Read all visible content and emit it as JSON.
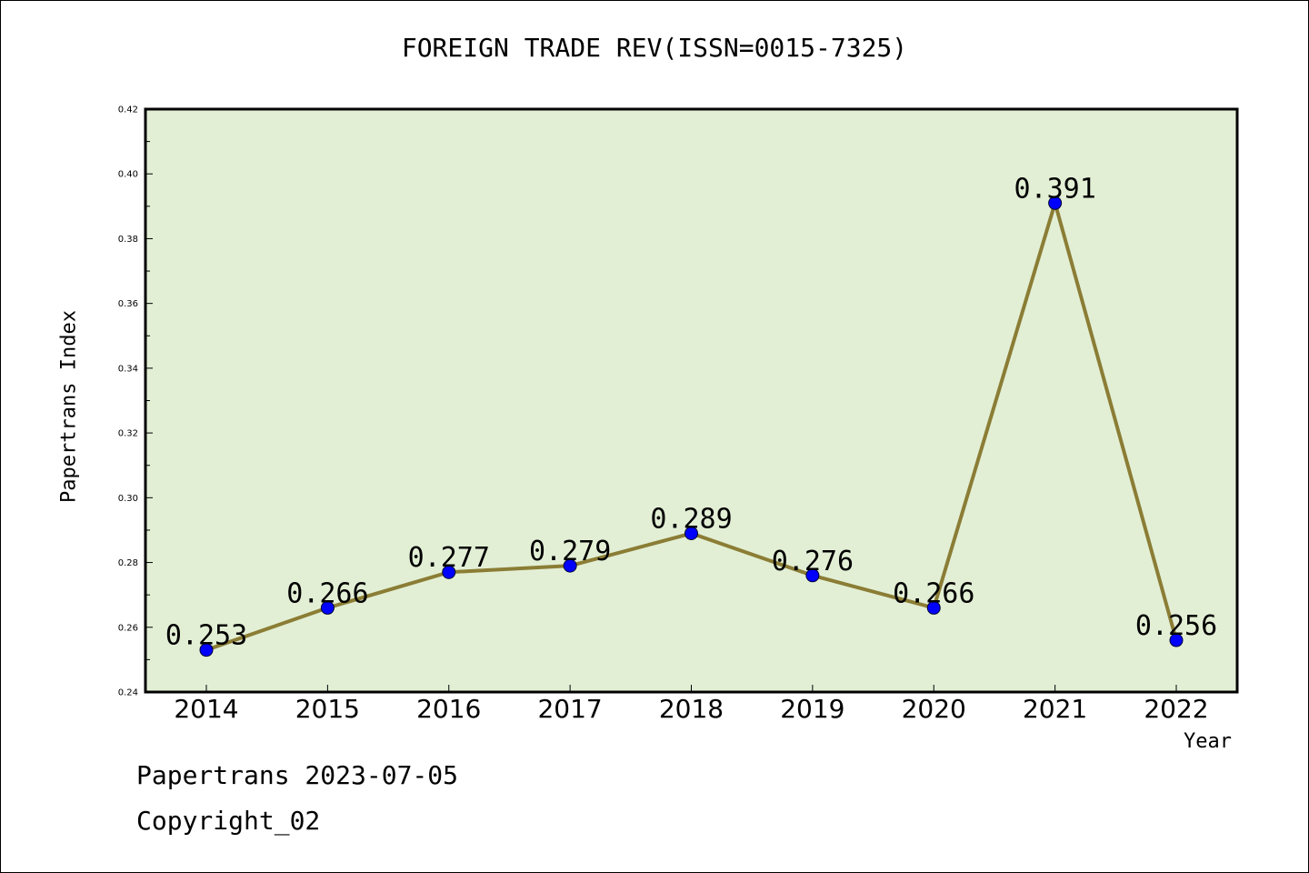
{
  "chart_data": {
    "type": "line",
    "title": "FOREIGN TRADE REV(ISSN=0015-7325)",
    "xlabel": "Year",
    "ylabel": "Papertrans Index",
    "categories": [
      "2014",
      "2015",
      "2016",
      "2017",
      "2018",
      "2019",
      "2020",
      "2021",
      "2022"
    ],
    "series": [
      {
        "values": [
          0.253,
          0.266,
          0.277,
          0.279,
          0.289,
          0.276,
          0.266,
          0.391,
          0.256
        ],
        "labels": [
          "0.253",
          "0.266",
          "0.277",
          "0.279",
          "0.289",
          "0.276",
          "0.266",
          "0.391",
          "0.256"
        ]
      }
    ],
    "ylim": [
      0.24,
      0.42
    ],
    "yticks": [
      "0.24",
      "0.26",
      "0.28",
      "0.30",
      "0.32",
      "0.34",
      "0.36",
      "0.38",
      "0.40",
      "0.42"
    ],
    "grid": false,
    "legend": "none",
    "colors": {
      "plot_background": "#e2efd5",
      "line": "#8b7d35",
      "marker": "#0000ff"
    }
  },
  "footer": {
    "line1": "Papertrans 2023-07-05",
    "line2": "Copyright_02"
  }
}
